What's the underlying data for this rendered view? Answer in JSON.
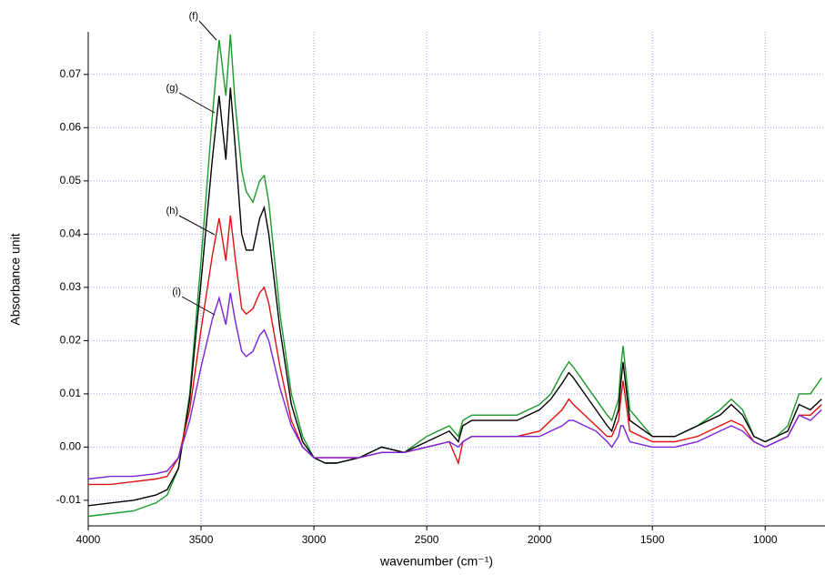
{
  "chart_data": {
    "type": "line",
    "xlabel": "wavenumber (cm⁻¹)",
    "ylabel": "Absorbance unit",
    "xlim": [
      4000,
      735
    ],
    "ylim": [
      -0.0148,
      0.078
    ],
    "xticks": [
      4000,
      3500,
      3000,
      2500,
      2000,
      1500,
      1000
    ],
    "yticks": [
      -0.01,
      {
        "value": 0,
        "label": "0.00"
      },
      0.01,
      0.02,
      0.03,
      0.04,
      0.05,
      0.06,
      0.07
    ],
    "grid": true,
    "x": [
      4000,
      3900,
      3800,
      3700,
      3650,
      3600,
      3550,
      3500,
      3450,
      3420,
      3390,
      3370,
      3350,
      3320,
      3300,
      3270,
      3240,
      3220,
      3200,
      3150,
      3100,
      3050,
      3000,
      2950,
      2900,
      2800,
      2700,
      2600,
      2500,
      2400,
      2360,
      2340,
      2300,
      2200,
      2100,
      2000,
      1950,
      1900,
      1870,
      1850,
      1800,
      1750,
      1700,
      1680,
      1650,
      1640,
      1630,
      1600,
      1500,
      1400,
      1300,
      1200,
      1150,
      1100,
      1050,
      1000,
      950,
      900,
      850,
      800,
      750
    ],
    "series": [
      {
        "name": "(f)",
        "color": "#1a9a2a",
        "values": [
          -0.013,
          -0.0125,
          -0.012,
          -0.0105,
          -0.009,
          -0.004,
          0.01,
          0.035,
          0.062,
          0.0765,
          0.066,
          0.0775,
          0.065,
          0.052,
          0.048,
          0.046,
          0.05,
          0.051,
          0.046,
          0.025,
          0.01,
          0.002,
          -0.002,
          -0.003,
          -0.003,
          -0.002,
          0,
          -0.001,
          0.002,
          0.004,
          0.002,
          0.005,
          0.006,
          0.006,
          0.006,
          0.008,
          0.01,
          0.014,
          0.016,
          0.015,
          0.012,
          0.009,
          0.006,
          0.005,
          0.009,
          0.015,
          0.019,
          0.007,
          0.002,
          0.002,
          0.004,
          0.007,
          0.009,
          0.007,
          0.002,
          0.001,
          0.002,
          0.004,
          0.01,
          0.01,
          0.013
        ]
      },
      {
        "name": "(g)",
        "color": "#000000",
        "values": [
          -0.011,
          -0.0105,
          -0.01,
          -0.009,
          -0.008,
          -0.004,
          0.009,
          0.031,
          0.054,
          0.066,
          0.054,
          0.0675,
          0.057,
          0.04,
          0.037,
          0.037,
          0.043,
          0.045,
          0.04,
          0.022,
          0.008,
          0.001,
          -0.002,
          -0.003,
          -0.003,
          -0.002,
          0,
          -0.001,
          0.001,
          0.003,
          0.001,
          0.004,
          0.005,
          0.005,
          0.005,
          0.007,
          0.009,
          0.012,
          0.014,
          0.013,
          0.01,
          0.007,
          0.004,
          0.003,
          0.007,
          0.012,
          0.016,
          0.005,
          0.002,
          0.002,
          0.004,
          0.006,
          0.008,
          0.006,
          0.002,
          0.001,
          0.002,
          0.003,
          0.008,
          0.007,
          0.009
        ]
      },
      {
        "name": "(h)",
        "color": "#e01010",
        "values": [
          -0.007,
          -0.007,
          -0.0065,
          -0.006,
          -0.0055,
          -0.002,
          0.007,
          0.022,
          0.036,
          0.043,
          0.035,
          0.0435,
          0.036,
          0.026,
          0.025,
          0.026,
          0.029,
          0.03,
          0.027,
          0.015,
          0.005,
          0,
          -0.002,
          -0.002,
          -0.002,
          -0.002,
          -0.001,
          -0.001,
          0,
          0.001,
          -0.003,
          0.001,
          0.002,
          0.002,
          0.002,
          0.003,
          0.005,
          0.007,
          0.009,
          0.008,
          0.006,
          0.004,
          0.002,
          0.002,
          0.005,
          0.009,
          0.0125,
          0.003,
          0.001,
          0.001,
          0.002,
          0.004,
          0.005,
          0.004,
          0.001,
          0,
          0.001,
          0.002,
          0.006,
          0.006,
          0.008
        ]
      },
      {
        "name": "(i)",
        "color": "#7a22d6",
        "values": [
          -0.006,
          -0.0055,
          -0.0055,
          -0.005,
          -0.0045,
          -0.002,
          0.005,
          0.015,
          0.024,
          0.028,
          0.023,
          0.029,
          0.024,
          0.018,
          0.017,
          0.018,
          0.021,
          0.022,
          0.02,
          0.011,
          0.004,
          0,
          -0.002,
          -0.002,
          -0.002,
          -0.002,
          -0.001,
          -0.001,
          0,
          0.001,
          0,
          0.001,
          0.002,
          0.002,
          0.002,
          0.002,
          0.003,
          0.004,
          0.005,
          0.005,
          0.004,
          0.003,
          0.001,
          0,
          0.002,
          0.004,
          0.004,
          0.001,
          0,
          0,
          0.001,
          0.003,
          0.004,
          0.003,
          0.001,
          0,
          0.001,
          0.002,
          0.006,
          0.005,
          0.007
        ]
      }
    ]
  }
}
